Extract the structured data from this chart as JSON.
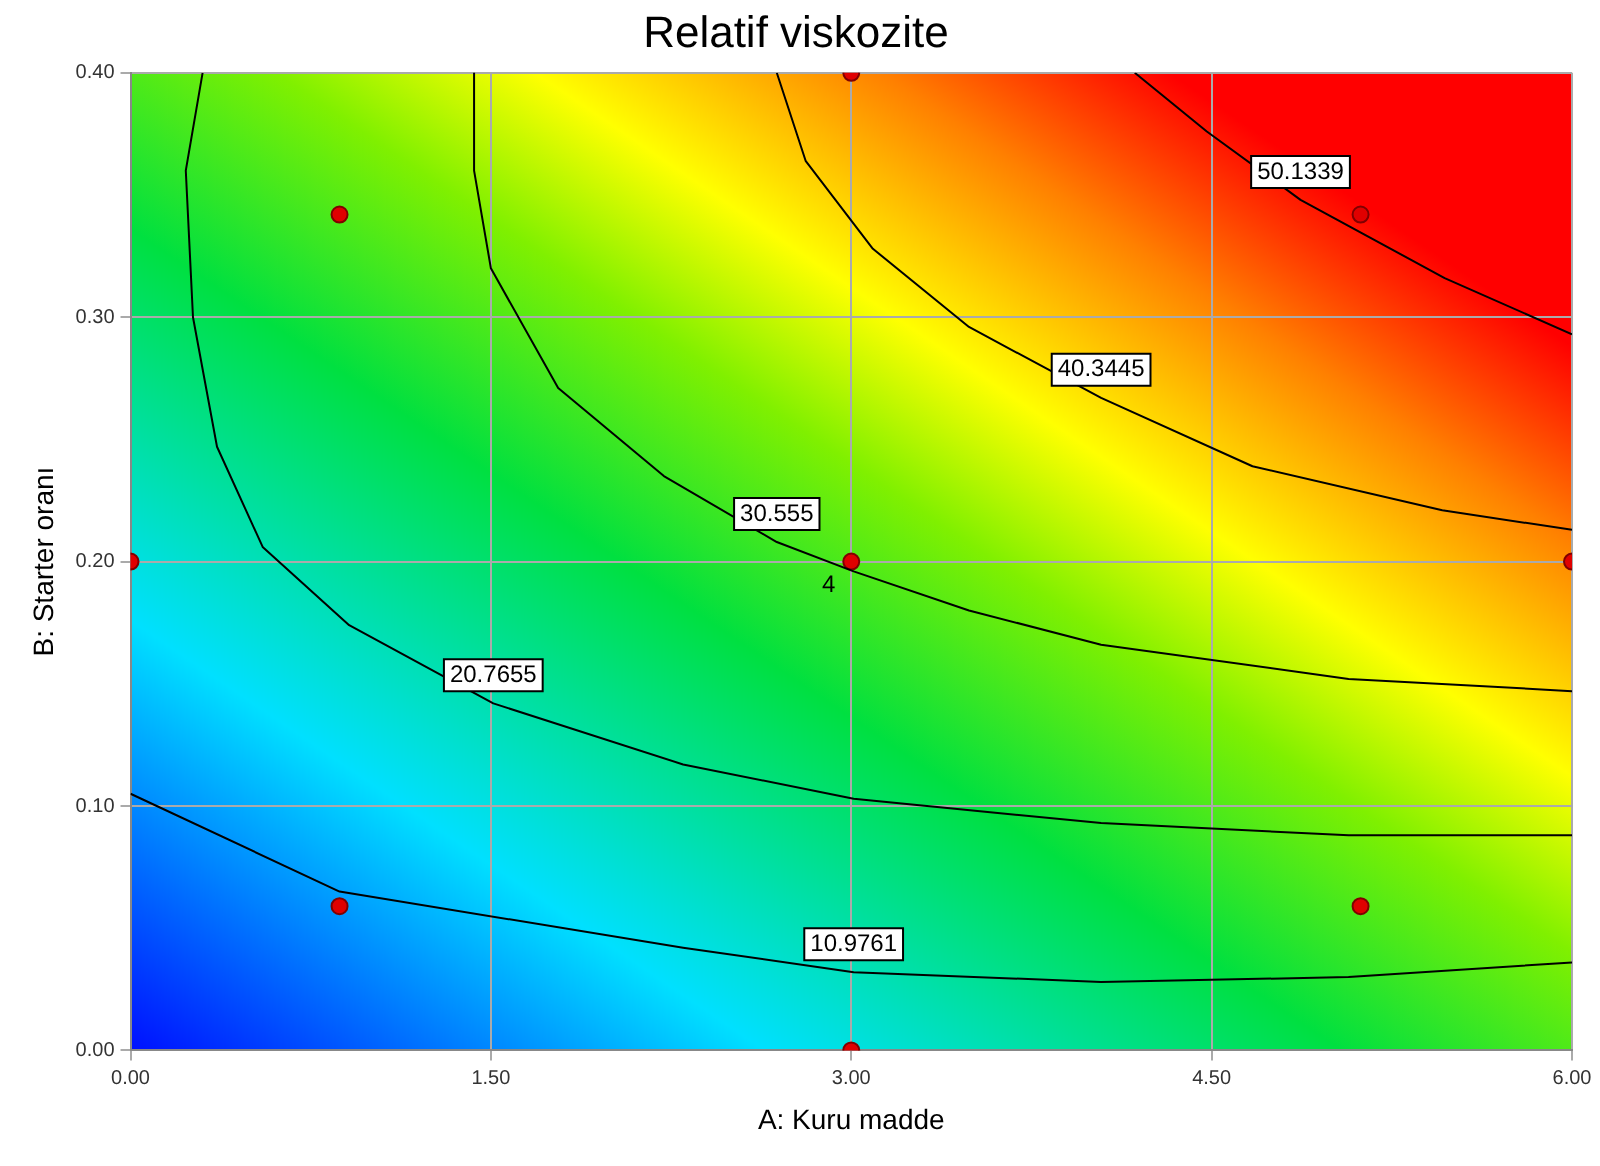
{
  "chart_data": {
    "type": "line",
    "title": "Relatif viskozite",
    "xlabel": "A: Kuru madde",
    "ylabel": "B: Starter oranı",
    "xlim": [
      0,
      6
    ],
    "ylim": [
      0,
      0.4
    ],
    "xticks": [
      {
        "value": 0,
        "label": "0.00"
      },
      {
        "value": 1.5,
        "label": "1.50"
      },
      {
        "value": 3,
        "label": "3.00"
      },
      {
        "value": 4.5,
        "label": "4.50"
      },
      {
        "value": 6,
        "label": "6.00"
      }
    ],
    "yticks": [
      {
        "value": 0,
        "label": "0.00"
      },
      {
        "value": 0.1,
        "label": "0.10"
      },
      {
        "value": 0.2,
        "label": "0.20"
      },
      {
        "value": 0.3,
        "label": "0.30"
      },
      {
        "value": 0.4,
        "label": "0.40"
      }
    ],
    "grid": true,
    "legend": false,
    "marker": "none",
    "line_style": "solid",
    "series": [
      {
        "name": "10.9761",
        "color": "#000000",
        "x": [
          0,
          0.87,
          2.3,
          3.01,
          4.04,
          5.07,
          6
        ],
        "values": [
          0.105,
          0.065,
          0.042,
          0.032,
          0.028,
          0.03,
          0.036
        ]
      },
      {
        "name": "20.7655",
        "color": "#000000",
        "x": [
          0.3,
          0.23,
          0.26,
          0.36,
          0.55,
          0.91,
          1.51,
          2.3,
          3.01,
          4.04,
          5.07,
          6
        ],
        "values": [
          0.4,
          0.36,
          0.3,
          0.247,
          0.206,
          0.174,
          0.142,
          0.117,
          0.103,
          0.093,
          0.088,
          0.088
        ]
      },
      {
        "name": "30.555",
        "color": "#000000",
        "x": [
          1.43,
          1.43,
          1.5,
          1.78,
          2.22,
          2.69,
          3.01,
          3.49,
          4.04,
          5.07,
          6
        ],
        "values": [
          0.4,
          0.36,
          0.32,
          0.271,
          0.235,
          0.208,
          0.196,
          0.18,
          0.166,
          0.152,
          0.147
        ]
      },
      {
        "name": "40.3445",
        "color": "#000000",
        "x": [
          2.69,
          2.81,
          3.09,
          3.49,
          4.04,
          4.67,
          5.46,
          6
        ],
        "values": [
          0.4,
          0.364,
          0.328,
          0.296,
          0.267,
          0.239,
          0.221,
          0.213
        ]
      },
      {
        "name": "50.1339",
        "color": "#000000",
        "x": [
          4.18,
          4.48,
          4.87,
          5.47,
          6
        ],
        "values": [
          0.4,
          0.376,
          0.348,
          0.316,
          0.293
        ]
      },
      {
        "type": "scatter",
        "marker": "circle",
        "color": "#e00000",
        "x": [
          0,
          0.87,
          0.87,
          3,
          3,
          3,
          5.12,
          5.12,
          6
        ],
        "values": [
          0.2,
          0.059,
          0.342,
          0.4,
          0.2,
          0,
          0.059,
          0.342,
          0.2
        ]
      }
    ],
    "annotations": [
      {
        "text": "4",
        "x": 3,
        "y": 0.2
      }
    ]
  }
}
